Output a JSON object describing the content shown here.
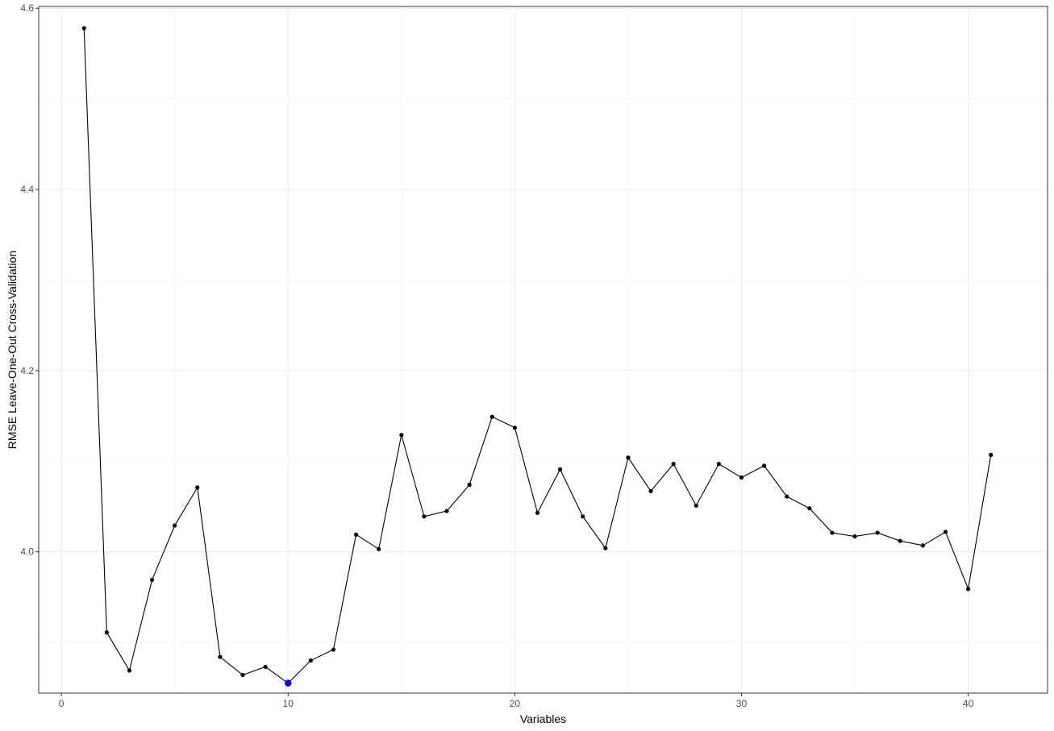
{
  "chart_data": {
    "type": "line",
    "xlabel": "Variables",
    "ylabel": "RMSE Leave-One-Out Cross-Validation",
    "xlim": [
      -1,
      43.5
    ],
    "ylim": [
      3.844,
      4.602
    ],
    "x_ticks": [
      0,
      10,
      20,
      30,
      40
    ],
    "y_ticks": [
      4.0,
      4.2,
      4.4,
      4.6
    ],
    "x_tick_labels": [
      "0",
      "10",
      "20",
      "30",
      "40"
    ],
    "y_tick_labels": [
      "4.0",
      "4.2",
      "4.4",
      "4.6"
    ],
    "x_minor_ticks": [
      5,
      15,
      25,
      35
    ],
    "y_minor_ticks": [
      3.9,
      4.1,
      4.3,
      4.5
    ],
    "grid": true,
    "legend": "none",
    "series": [
      {
        "x": [
          1,
          2,
          3,
          4,
          5,
          6,
          7,
          8,
          9,
          10,
          11,
          12,
          13,
          14,
          15,
          16,
          17,
          18,
          19,
          20,
          21,
          22,
          23,
          24,
          25,
          26,
          27,
          28,
          29,
          30,
          31,
          32,
          33,
          34,
          35,
          36,
          37,
          38,
          39,
          40,
          41
        ],
        "values": [
          4.578,
          3.911,
          3.869,
          3.969,
          4.029,
          4.071,
          3.884,
          3.864,
          3.873,
          3.855,
          3.88,
          3.892,
          4.019,
          4.003,
          4.129,
          4.039,
          4.045,
          4.074,
          4.149,
          4.137,
          4.043,
          4.091,
          4.039,
          4.004,
          4.104,
          4.067,
          4.097,
          4.051,
          4.097,
          4.082,
          4.095,
          4.061,
          4.048,
          4.021,
          4.017,
          4.021,
          4.012,
          4.007,
          4.022,
          3.959,
          4.107
        ],
        "color": "#000000"
      }
    ],
    "highlight": {
      "x": 10,
      "value": 3.855,
      "color": "#0000ff"
    },
    "colors": {
      "grid_major": "#ebebeb",
      "grid_minor": "#f5f5f5",
      "panel_border": "#333333",
      "tick_text": "#4d4d4d",
      "title_text": "#000000"
    }
  }
}
